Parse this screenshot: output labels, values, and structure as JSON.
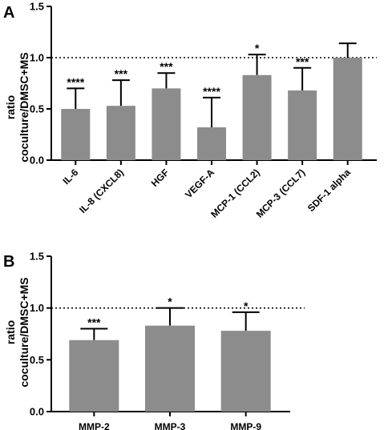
{
  "chart_data": [
    {
      "panel_label": "A",
      "type": "bar",
      "ylabel_line1": "ratio",
      "ylabel_line2": "coculture/DMSC+MS",
      "ylim": [
        0,
        1.5
      ],
      "yticks": [
        "0.0",
        "0.5",
        "1.0",
        "1.5"
      ],
      "reference_line": 1.0,
      "bar_color": "#8c8c8c",
      "categories": [
        "IL-6",
        "IL-8 (CXCL8)",
        "HGF",
        "VEGF-A",
        "MCP-1 (CCL2)",
        "MCP-3 (CCL7)",
        "SDF-1 alpha"
      ],
      "values": [
        0.5,
        0.53,
        0.7,
        0.32,
        0.83,
        0.68,
        1.0
      ],
      "error_upper": [
        0.7,
        0.78,
        0.85,
        0.61,
        1.03,
        0.9,
        1.14
      ],
      "significance": [
        "****",
        "***",
        "***",
        "****",
        "*",
        "***",
        ""
      ]
    },
    {
      "panel_label": "B",
      "type": "bar",
      "ylabel_line1": "ratio",
      "ylabel_line2": "coculture/DMSC+MS",
      "ylim": [
        0,
        1.5
      ],
      "yticks": [
        "0.0",
        "0.5",
        "1.0",
        "1.5"
      ],
      "reference_line": 1.0,
      "bar_color": "#8c8c8c",
      "categories": [
        "MMP-2",
        "MMP-3",
        "MMP-9"
      ],
      "values": [
        0.69,
        0.83,
        0.78
      ],
      "error_upper": [
        0.8,
        1.0,
        0.96
      ],
      "significance": [
        "***",
        "*",
        "*"
      ]
    }
  ]
}
